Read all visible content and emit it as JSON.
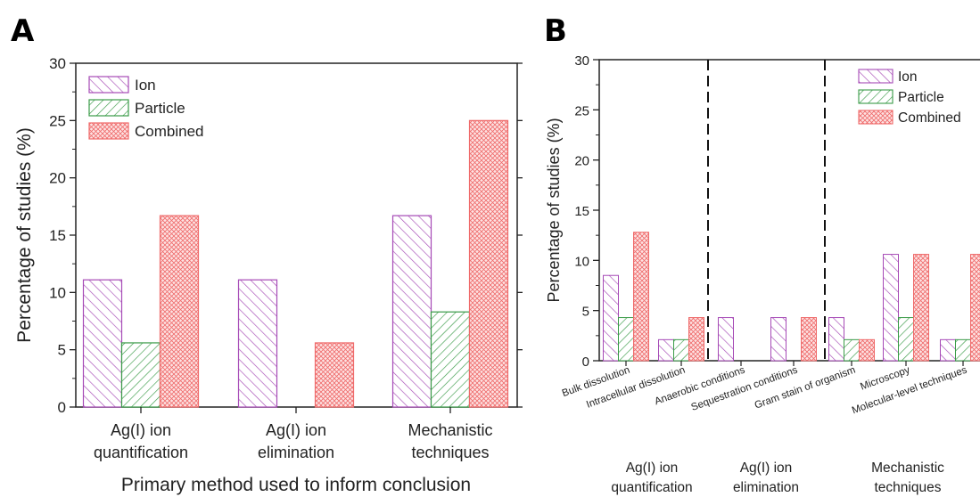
{
  "colors": {
    "ion": "#a64ab6",
    "particle": "#3a9b48",
    "combined": "#ef6a6a"
  },
  "chart_data": [
    {
      "panel": "A",
      "type": "bar",
      "title": "",
      "xlabel": "Primary method used to inform conclusion",
      "ylabel": "Percentage of studies (%)",
      "ylim": [
        0,
        30
      ],
      "yticks": [
        "0",
        "5",
        "10",
        "15",
        "20",
        "25",
        "30"
      ],
      "categories": [
        [
          "Ag(I) ion",
          "quantification"
        ],
        [
          "Ag(I) ion",
          "elimination"
        ],
        [
          "Mechanistic",
          "techniques"
        ]
      ],
      "series": [
        {
          "name": "Ion",
          "values": [
            11.1,
            11.1,
            16.7
          ]
        },
        {
          "name": "Particle",
          "values": [
            5.6,
            0,
            8.3
          ]
        },
        {
          "name": "Combined",
          "values": [
            16.7,
            5.6,
            25.0
          ]
        }
      ],
      "legend_position": "top-left"
    },
    {
      "panel": "B",
      "type": "bar",
      "title": "",
      "xlabel": "",
      "ylabel": "Percentage of studies (%)",
      "ylim": [
        0,
        30
      ],
      "yticks": [
        "0",
        "5",
        "10",
        "15",
        "20",
        "25",
        "30"
      ],
      "categories": [
        "Bulk dissolution",
        "Intracellular dissolution",
        "Anaerobic conditions",
        "Sequestration conditions",
        "Gram stain of organism",
        "Microscopy",
        "Molecular-level techniques"
      ],
      "group_labels": [
        [
          "Ag(I) ion",
          "quantification"
        ],
        [
          "Ag(I) ion",
          "elimination"
        ],
        [
          "Mechanistic",
          "techniques"
        ]
      ],
      "series": [
        {
          "name": "Ion",
          "values": [
            8.5,
            2.1,
            4.3,
            4.3,
            4.3,
            10.6,
            2.1
          ]
        },
        {
          "name": "Particle",
          "values": [
            4.3,
            2.1,
            0,
            0,
            2.1,
            4.3,
            2.1
          ]
        },
        {
          "name": "Combined",
          "values": [
            12.8,
            4.3,
            0,
            4.3,
            2.1,
            10.6,
            10.6
          ]
        }
      ],
      "legend_position": "top-right"
    }
  ]
}
